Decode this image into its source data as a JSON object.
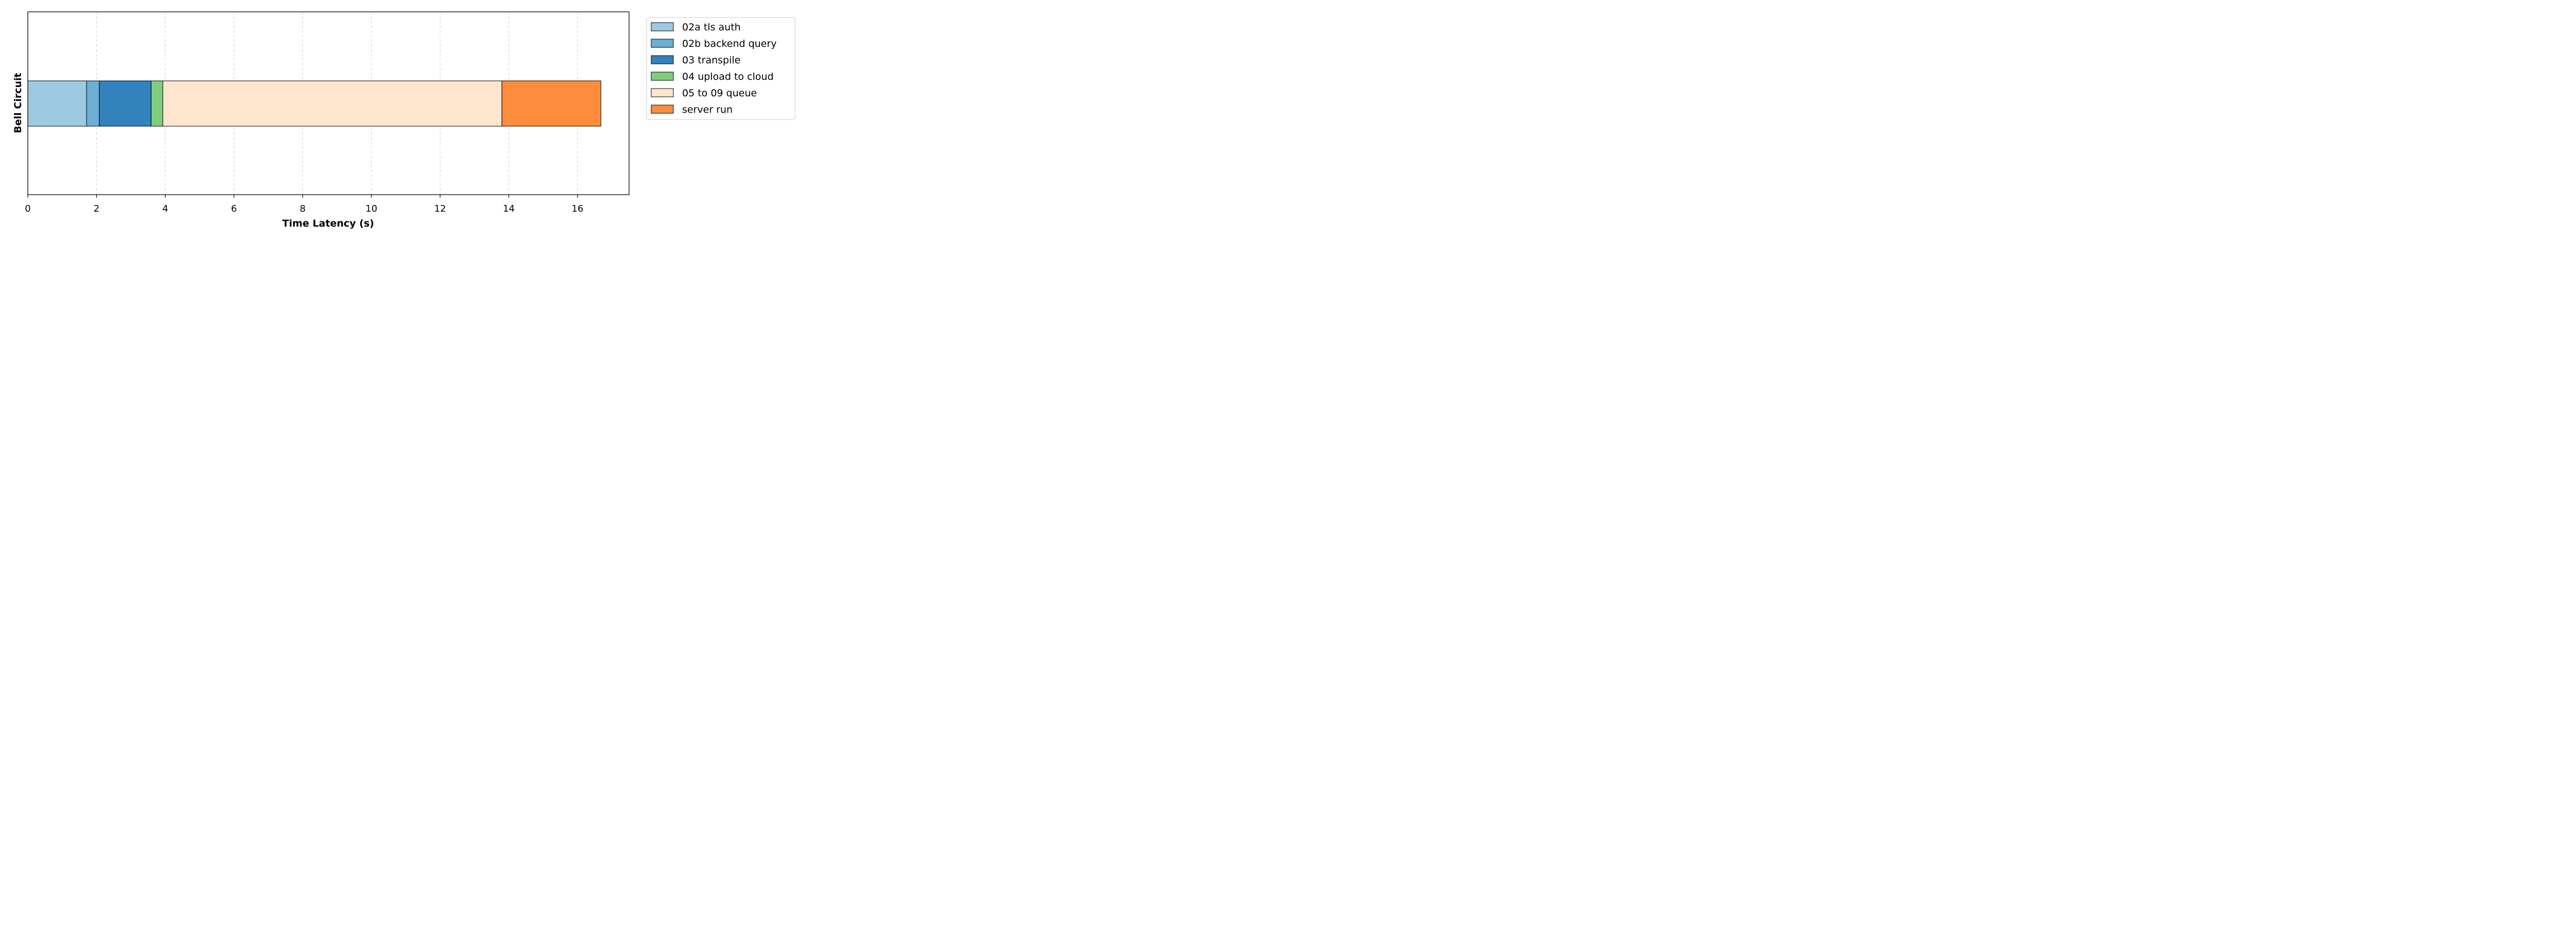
{
  "chart_data": {
    "type": "bar",
    "orientation": "horizontal",
    "stacked": true,
    "title": "",
    "xlabel": "Time Latency (s)",
    "ylabel": "Bell Circuit",
    "xlim": [
      0,
      17.5
    ],
    "xticks": [
      0,
      2,
      4,
      6,
      8,
      10,
      12,
      14,
      16
    ],
    "grid": "vertical dashed",
    "legend_position": "outside right",
    "categories": [
      "Bell Circuit"
    ],
    "series": [
      {
        "name": "02a tls auth",
        "values": [
          1.71
        ],
        "color": "#9ecae1"
      },
      {
        "name": "02b backend query",
        "values": [
          0.37
        ],
        "color": "#6baed6"
      },
      {
        "name": "03 transpile",
        "values": [
          1.51
        ],
        "color": "#3182bd"
      },
      {
        "name": "04 upload to cloud",
        "values": [
          0.34
        ],
        "color": "#80cd7f"
      },
      {
        "name": "05 to 09 queue",
        "values": [
          9.87
        ],
        "color": "#fde5ce"
      },
      {
        "name": "server run",
        "values": [
          2.88
        ],
        "color": "#fd8d3c"
      }
    ]
  }
}
